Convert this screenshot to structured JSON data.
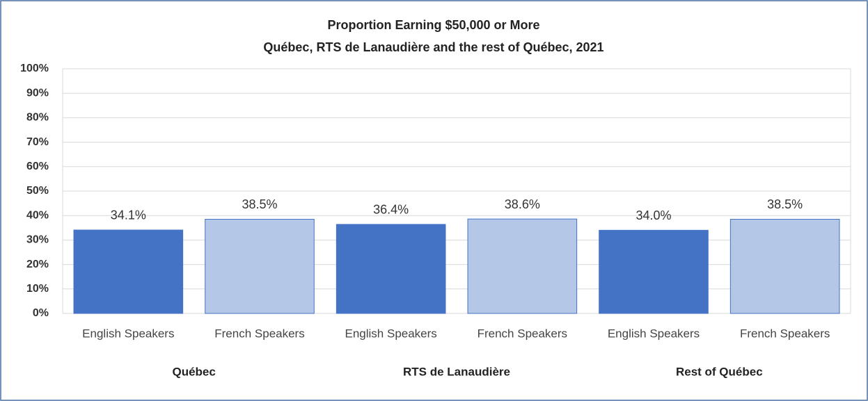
{
  "chart_data": {
    "type": "bar",
    "title": "Proportion Earning $50,000 or More",
    "subtitle": "Québec, RTS de Lanaudière and the rest of Québec, 2021",
    "categories": [
      "English Speakers",
      "French Speakers",
      "English Speakers",
      "French Speakers",
      "English Speakers",
      "French Speakers"
    ],
    "group_labels": [
      "Québec",
      "RTS de Lanaudière",
      "Rest of Québec"
    ],
    "values": [
      34.1,
      38.5,
      36.4,
      38.6,
      34.0,
      38.5
    ],
    "value_labels": [
      "34.1%",
      "38.5%",
      "36.4%",
      "38.6%",
      "34.0%",
      "38.5%"
    ],
    "colors": [
      "#4472c4",
      "#b4c7e7",
      "#4472c4",
      "#b4c7e7",
      "#4472c4",
      "#b4c7e7"
    ],
    "ylim": [
      0,
      100
    ],
    "yticks": [
      {
        "value": 0,
        "label": "0%"
      },
      {
        "value": 10,
        "label": "10%"
      },
      {
        "value": 20,
        "label": "20%"
      },
      {
        "value": 30,
        "label": "30%"
      },
      {
        "value": 40,
        "label": "40%"
      },
      {
        "value": 50,
        "label": "50%"
      },
      {
        "value": 60,
        "label": "60%"
      },
      {
        "value": 70,
        "label": "70%"
      },
      {
        "value": 80,
        "label": "80%"
      },
      {
        "value": 90,
        "label": "90%"
      },
      {
        "value": 100,
        "label": "100%"
      }
    ],
    "grid": true
  }
}
